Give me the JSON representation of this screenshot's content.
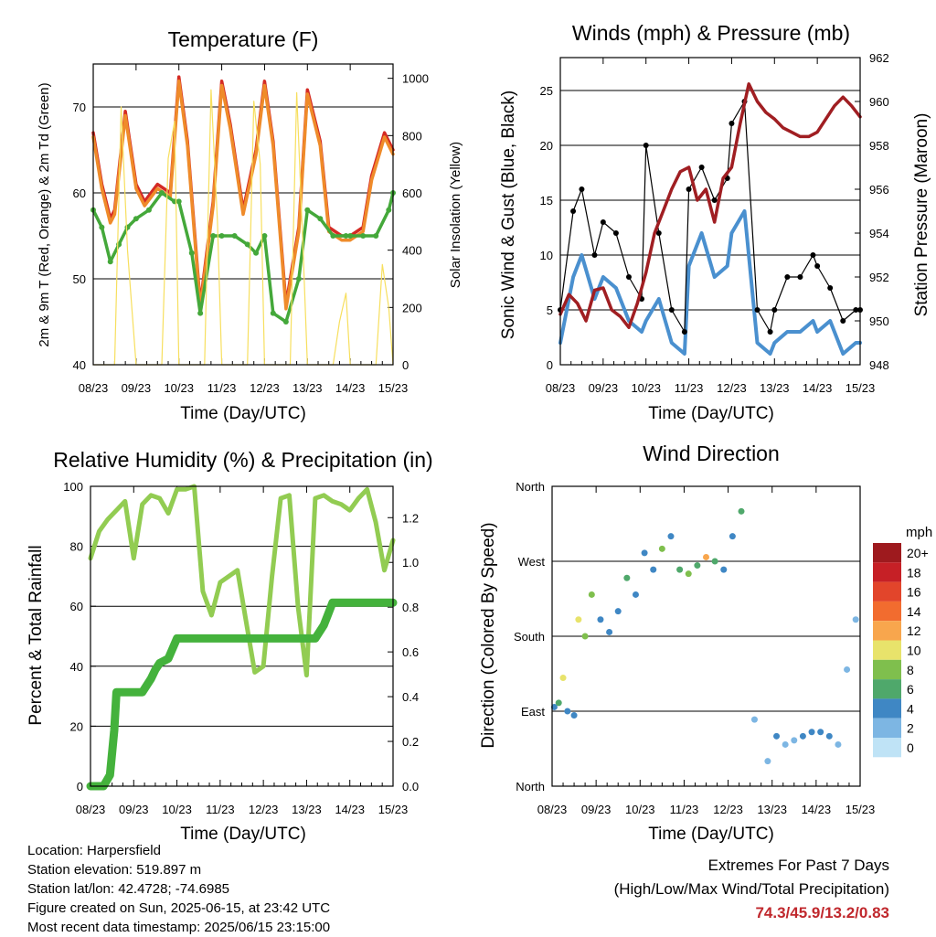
{
  "charts": {
    "temperature": {
      "title": "Temperature (F)",
      "xlabel": "Time (Day/UTC)",
      "ylabel_left": "2m & 9m T (Red, Orange) & 2m Td (Green)",
      "ylabel_right": "Solar Insolation (Yellow)"
    },
    "winds": {
      "title": "Winds (mph) & Pressure (mb)",
      "xlabel": "Time (Day/UTC)",
      "ylabel_left": "Sonic Wind & Gust (Blue, Black)",
      "ylabel_right": "Station Pressure (Maroon)"
    },
    "humidity": {
      "title": "Relative Humidity (%) & Precipitation (in)",
      "xlabel": "Time (Day/UTC)",
      "ylabel_left": "Percent & Total Rainfall"
    },
    "direction": {
      "title": "Wind Direction",
      "xlabel": "Time (Day/UTC)",
      "ylabel_left": "Direction (Colored By Speed)",
      "legend_title": "mph"
    }
  },
  "chart_data": [
    {
      "type": "line",
      "title": "Temperature (F)",
      "xlabel": "Time (Day/UTC)",
      "ylabel": "2m & 9m T (Red, Orange) & 2m Td (Green)",
      "y2label": "Solar Insolation (Yellow)",
      "x_ticks": [
        "08/23",
        "09/23",
        "10/23",
        "11/23",
        "12/23",
        "13/23",
        "14/23",
        "15/23"
      ],
      "xlim_days": [
        8,
        15
      ],
      "ylim": [
        40,
        75
      ],
      "y_ticks": [
        40,
        50,
        60,
        70
      ],
      "y2lim": [
        0,
        1050
      ],
      "y2_ticks": [
        0,
        200,
        400,
        600,
        800,
        1000
      ],
      "grid": true,
      "series": [
        {
          "name": "2m T",
          "color": "#d42a24",
          "axis": "left",
          "x": [
            8.0,
            8.2,
            8.4,
            8.5,
            8.75,
            9.0,
            9.2,
            9.5,
            9.8,
            10.0,
            10.2,
            10.5,
            10.8,
            11.0,
            11.2,
            11.5,
            11.8,
            12.0,
            12.2,
            12.5,
            12.8,
            13.0,
            13.3,
            13.5,
            13.8,
            14.0,
            14.3,
            14.5,
            14.8,
            15.0
          ],
          "values": [
            67,
            61,
            57,
            58,
            69.5,
            61,
            59,
            61,
            60,
            73.5,
            66,
            47,
            59,
            73,
            68,
            58,
            65,
            73,
            66,
            47,
            56,
            72,
            66,
            56,
            55,
            55,
            56,
            62,
            67,
            65
          ]
        },
        {
          "name": "9m T",
          "color": "#ef8b2a",
          "axis": "left",
          "x": [
            8.0,
            8.2,
            8.4,
            8.5,
            8.75,
            9.0,
            9.2,
            9.5,
            9.8,
            10.0,
            10.2,
            10.5,
            10.8,
            11.0,
            11.2,
            11.5,
            11.8,
            12.0,
            12.2,
            12.5,
            12.8,
            13.0,
            13.3,
            13.5,
            13.8,
            14.0,
            14.3,
            14.5,
            14.8,
            15.0
          ],
          "values": [
            66.5,
            60.5,
            56.5,
            57.5,
            69,
            60.5,
            58.5,
            60.5,
            59.5,
            73,
            65.5,
            46.5,
            58.5,
            72.5,
            67.5,
            57.5,
            64.5,
            72.5,
            65.5,
            46.5,
            55.5,
            71.5,
            65.5,
            55.5,
            54.5,
            54.5,
            55.5,
            61.5,
            66.5,
            64.5
          ]
        },
        {
          "name": "2m Td",
          "color": "#44a83a",
          "axis": "left",
          "x": [
            8.0,
            8.2,
            8.4,
            8.6,
            8.8,
            9.0,
            9.3,
            9.6,
            9.9,
            10.0,
            10.3,
            10.5,
            10.8,
            11.0,
            11.3,
            11.6,
            11.8,
            12.0,
            12.2,
            12.5,
            12.8,
            13.0,
            13.3,
            13.6,
            13.9,
            14.0,
            14.3,
            14.6,
            14.9,
            15.0
          ],
          "values": [
            58,
            56,
            52,
            54,
            56,
            57,
            58,
            60,
            59,
            59,
            53,
            46,
            55,
            55,
            55,
            54,
            53,
            55,
            46,
            45,
            50,
            58,
            57,
            55,
            55,
            55,
            55,
            55,
            58,
            60
          ]
        },
        {
          "name": "Solar Insolation",
          "color": "#f7df5e",
          "axis": "right",
          "x": [
            8.0,
            8.3,
            8.5,
            8.65,
            8.8,
            9.0,
            9.3,
            9.6,
            9.75,
            9.9,
            10.0,
            10.3,
            10.6,
            10.75,
            10.9,
            11.0,
            11.3,
            11.6,
            11.75,
            11.9,
            12.0,
            12.3,
            12.6,
            12.75,
            12.9,
            13.0,
            13.3,
            13.6,
            13.75,
            13.9,
            14.0,
            14.3,
            14.6,
            14.75,
            14.9,
            15.0
          ],
          "values": [
            0,
            0,
            0,
            900,
            400,
            0,
            0,
            0,
            720,
            850,
            0,
            0,
            0,
            960,
            500,
            0,
            0,
            0,
            920,
            700,
            0,
            0,
            0,
            950,
            400,
            0,
            0,
            0,
            150,
            250,
            0,
            0,
            0,
            350,
            200,
            0
          ]
        }
      ]
    },
    {
      "type": "line",
      "title": "Winds (mph) & Pressure (mb)",
      "xlabel": "Time (Day/UTC)",
      "ylabel": "Sonic Wind & Gust (Blue, Black)",
      "y2label": "Station Pressure (Maroon)",
      "x_ticks": [
        "08/23",
        "09/23",
        "10/23",
        "11/23",
        "12/23",
        "13/23",
        "14/23",
        "15/23"
      ],
      "xlim_days": [
        8,
        15
      ],
      "ylim": [
        0,
        28
      ],
      "y_ticks": [
        0,
        5,
        10,
        15,
        20,
        25
      ],
      "y2lim": [
        948,
        962
      ],
      "y2_ticks": [
        948,
        950,
        952,
        954,
        956,
        958,
        960,
        962
      ],
      "grid": true,
      "series": [
        {
          "name": "Sonic Wind",
          "color": "#4a90cf",
          "axis": "left",
          "x": [
            8.0,
            8.3,
            8.5,
            8.8,
            9.0,
            9.3,
            9.6,
            9.9,
            10.0,
            10.3,
            10.6,
            10.9,
            11.0,
            11.3,
            11.6,
            11.9,
            12.0,
            12.3,
            12.6,
            12.9,
            13.0,
            13.3,
            13.6,
            13.9,
            14.0,
            14.3,
            14.6,
            14.9,
            15.0
          ],
          "values": [
            2,
            8,
            10,
            6,
            8,
            7,
            4,
            3,
            4,
            6,
            2,
            1,
            9,
            12,
            8,
            9,
            12,
            14,
            2,
            1,
            2,
            3,
            3,
            4,
            3,
            4,
            1,
            2,
            2
          ]
        },
        {
          "name": "Gust",
          "color": "#000000",
          "axis": "left",
          "x": [
            8.0,
            8.3,
            8.5,
            8.8,
            9.0,
            9.3,
            9.6,
            9.9,
            10.0,
            10.3,
            10.6,
            10.9,
            11.0,
            11.3,
            11.6,
            11.9,
            12.0,
            12.3,
            12.6,
            12.9,
            13.0,
            13.3,
            13.6,
            13.9,
            14.0,
            14.3,
            14.6,
            14.9,
            15.0
          ],
          "values": [
            5,
            14,
            16,
            10,
            13,
            12,
            8,
            6,
            20,
            12,
            5,
            3,
            16,
            18,
            15,
            17,
            22,
            24,
            5,
            3,
            5,
            8,
            8,
            10,
            9,
            7,
            4,
            5,
            5
          ]
        },
        {
          "name": "Station Pressure",
          "color": "#a01e22",
          "axis": "right",
          "x": [
            8.0,
            8.2,
            8.4,
            8.6,
            8.8,
            9.0,
            9.2,
            9.4,
            9.6,
            9.8,
            10.0,
            10.2,
            10.4,
            10.6,
            10.8,
            11.0,
            11.2,
            11.4,
            11.6,
            11.8,
            12.0,
            12.2,
            12.4,
            12.6,
            12.8,
            13.0,
            13.2,
            13.4,
            13.6,
            13.8,
            14.0,
            14.2,
            14.4,
            14.6,
            14.8,
            15.0
          ],
          "values": [
            950.3,
            951.2,
            950.8,
            950,
            951.4,
            951.5,
            950.5,
            950.2,
            949.7,
            950.8,
            952.2,
            954,
            955,
            956,
            956.8,
            957,
            955.5,
            956,
            954.5,
            956.5,
            957,
            959,
            960.8,
            960,
            959.5,
            959.2,
            958.8,
            958.6,
            958.4,
            958.4,
            958.6,
            959.2,
            959.8,
            960.2,
            959.8,
            959.3
          ]
        }
      ]
    },
    {
      "type": "line",
      "title": "Relative Humidity (%) & Precipitation (in)",
      "xlabel": "Time (Day/UTC)",
      "ylabel": "Percent & Total Rainfall",
      "x_ticks": [
        "08/23",
        "09/23",
        "10/23",
        "11/23",
        "12/23",
        "13/23",
        "14/23",
        "15/23"
      ],
      "xlim_days": [
        8,
        15
      ],
      "ylim": [
        0,
        100
      ],
      "y_ticks": [
        0,
        20,
        40,
        60,
        80,
        100
      ],
      "y2lim": [
        0,
        1.34
      ],
      "y2_ticks": [
        0.0,
        0.2,
        0.4,
        0.6,
        0.8,
        1.0,
        1.2
      ],
      "grid": true,
      "series": [
        {
          "name": "Relative Humidity",
          "color": "#92cc52",
          "axis": "left",
          "x": [
            8.0,
            8.2,
            8.4,
            8.6,
            8.8,
            9.0,
            9.2,
            9.4,
            9.6,
            9.8,
            10.0,
            10.2,
            10.4,
            10.6,
            10.8,
            11.0,
            11.2,
            11.4,
            11.6,
            11.8,
            12.0,
            12.2,
            12.4,
            12.6,
            12.8,
            13.0,
            13.2,
            13.4,
            13.6,
            13.8,
            14.0,
            14.2,
            14.4,
            14.6,
            14.8,
            15.0
          ],
          "values": [
            76,
            85,
            89,
            92,
            95,
            76,
            94,
            97,
            96,
            91,
            99,
            99,
            100,
            65,
            57,
            68,
            70,
            72,
            55,
            38,
            40,
            70,
            96,
            97,
            60,
            37,
            96,
            97,
            95,
            94,
            92,
            96,
            99,
            88,
            72,
            82
          ]
        },
        {
          "name": "Total Rainfall",
          "color": "#44b23c",
          "axis": "right",
          "x": [
            8.0,
            8.3,
            8.45,
            8.55,
            8.6,
            8.8,
            9.0,
            9.2,
            9.4,
            9.5,
            9.6,
            9.8,
            10.0,
            10.3,
            10.6,
            10.9,
            11.0,
            11.3,
            11.6,
            11.9,
            12.0,
            12.3,
            12.6,
            12.9,
            13.0,
            13.2,
            13.4,
            13.5,
            13.6,
            13.8,
            14.0,
            14.3,
            14.6,
            14.9,
            15.0
          ],
          "values": [
            0,
            0,
            0.05,
            0.25,
            0.42,
            0.42,
            0.42,
            0.42,
            0.48,
            0.52,
            0.55,
            0.57,
            0.66,
            0.66,
            0.66,
            0.66,
            0.66,
            0.66,
            0.66,
            0.66,
            0.66,
            0.66,
            0.66,
            0.66,
            0.66,
            0.66,
            0.72,
            0.77,
            0.82,
            0.82,
            0.82,
            0.82,
            0.82,
            0.82,
            0.82
          ]
        }
      ]
    },
    {
      "type": "scatter",
      "title": "Wind Direction",
      "xlabel": "Time (Day/UTC)",
      "ylabel": "Direction (Colored By Speed)",
      "x_ticks": [
        "08/23",
        "09/23",
        "10/23",
        "11/23",
        "12/23",
        "13/23",
        "14/23",
        "15/23"
      ],
      "xlim_days": [
        8,
        15
      ],
      "y_ticks": [
        "North",
        "East",
        "South",
        "West",
        "North"
      ],
      "y_values_deg": [
        0,
        90,
        180,
        270,
        360
      ],
      "grid": true,
      "legend_title": "mph",
      "legend_placement": "right",
      "legend_levels": [
        "20+",
        "18",
        "16",
        "14",
        "12",
        "10",
        "8",
        "6",
        "4",
        "2",
        "0"
      ],
      "legend_colors": [
        "#9e1a1e",
        "#c62026",
        "#e2452b",
        "#f26c2f",
        "#f8a64d",
        "#e8e36b",
        "#7fbf4d",
        "#4fa86b",
        "#3f87c4",
        "#7db6e3",
        "#bfe3f6"
      ],
      "series": [
        {
          "name": "Wind Direction",
          "x": [
            8.05,
            8.15,
            8.25,
            8.35,
            8.5,
            8.6,
            8.75,
            8.9,
            9.1,
            9.3,
            9.5,
            9.7,
            9.9,
            10.1,
            10.3,
            10.5,
            10.7,
            10.9,
            11.1,
            11.3,
            11.5,
            11.7,
            11.9,
            12.1,
            12.3,
            12.6,
            12.9,
            13.1,
            13.3,
            13.5,
            13.7,
            13.9,
            14.1,
            14.3,
            14.5,
            14.7,
            14.9
          ],
          "values": [
            95,
            100,
            130,
            90,
            85,
            200,
            180,
            230,
            200,
            185,
            210,
            250,
            230,
            280,
            260,
            285,
            300,
            260,
            255,
            265,
            275,
            270,
            260,
            300,
            330,
            80,
            30,
            60,
            50,
            55,
            60,
            65,
            65,
            60,
            50,
            140,
            200
          ],
          "speeds": [
            3,
            5,
            10,
            4,
            3,
            9,
            7,
            7,
            4,
            4,
            3,
            6,
            3,
            4,
            4,
            7,
            3,
            6,
            8,
            6,
            11,
            6,
            4,
            4,
            5,
            1,
            1,
            3,
            2,
            2,
            3,
            3,
            4,
            3,
            2,
            1,
            2
          ]
        }
      ]
    }
  ],
  "info": {
    "location": "Location: Harpersfield",
    "elevation": "Station elevation: 519.897 m",
    "latlon": "Station lat/lon: 42.4728; -74.6985",
    "created": "Figure created on Sun, 2025-06-15, at 23:42 UTC",
    "recent": "Most recent data timestamp: 2025/06/15 23:15:00"
  },
  "extremes": {
    "title": "Extremes For Past 7 Days",
    "subtitle": "(High/Low/Max Wind/Total Precipitation)",
    "values": "74.3/45.9/13.2/0.83"
  }
}
